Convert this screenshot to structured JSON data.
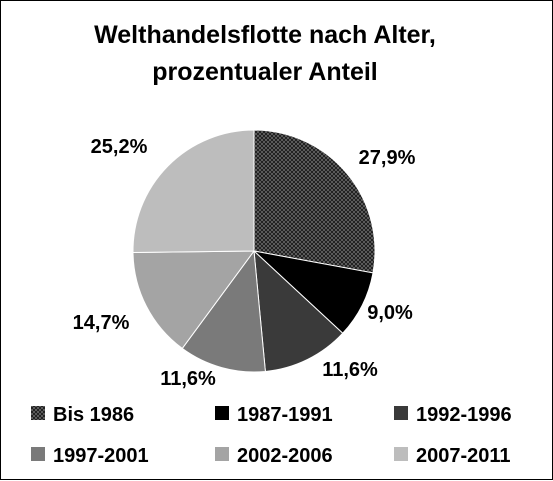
{
  "chart_data": {
    "type": "pie",
    "title": [
      "Welthandelsflotte nach Alter,",
      "prozentualer Anteil"
    ],
    "categories": [
      "Bis 1986",
      "1987-1991",
      "1992-1996",
      "1997-2001",
      "2002-2006",
      "2007-2011"
    ],
    "values": [
      27.9,
      9.0,
      11.6,
      11.6,
      14.7,
      25.2
    ],
    "data_labels": [
      "27,9%",
      "9,0%",
      "11,6%",
      "11,6%",
      "14,7%",
      "25,2%"
    ],
    "colors": [
      "#3c3c3c",
      "#000000",
      "#3a3a3a",
      "#7a7a7a",
      "#a4a4a4",
      "#bdbdbd"
    ],
    "patterns": [
      "checkered",
      "solid",
      "solid",
      "solid",
      "solid",
      "solid"
    ],
    "legend_position": "bottom",
    "start_angle": "12 o'clock",
    "direction": "clockwise"
  }
}
